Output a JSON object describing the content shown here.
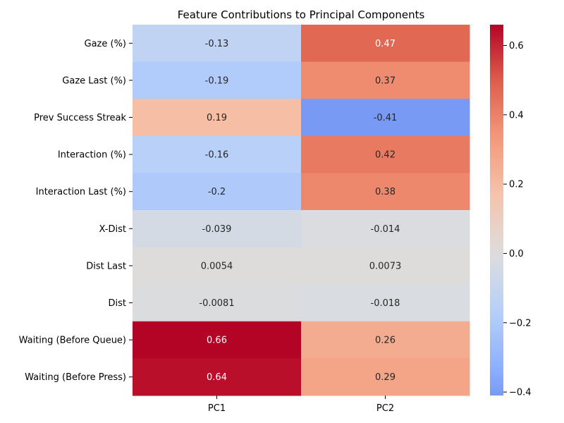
{
  "chart_data": {
    "type": "heatmap",
    "title": "Feature Contributions to Principal Components",
    "xlabel": "",
    "ylabel": "",
    "columns": [
      "PC1",
      "PC2"
    ],
    "rows": [
      "Gaze (%)",
      "Gaze Last (%)",
      "Prev Success Streak",
      "Interaction (%)",
      "Interaction Last (%)",
      "X-Dist",
      "Dist Last",
      "Dist",
      "Waiting (Before Queue)",
      "Waiting (Before Press)"
    ],
    "values": [
      [
        -0.13,
        0.47
      ],
      [
        -0.19,
        0.37
      ],
      [
        0.19,
        -0.41
      ],
      [
        -0.16,
        0.42
      ],
      [
        -0.2,
        0.38
      ],
      [
        -0.039,
        -0.014
      ],
      [
        0.0054,
        0.0073
      ],
      [
        -0.0081,
        -0.018
      ],
      [
        0.66,
        0.26
      ],
      [
        0.64,
        0.29
      ]
    ],
    "annotations": [
      [
        "-0.13",
        "0.47"
      ],
      [
        "-0.19",
        "0.37"
      ],
      [
        "0.19",
        "-0.41"
      ],
      [
        "-0.16",
        "0.42"
      ],
      [
        "-0.2",
        "0.38"
      ],
      [
        "-0.039",
        "-0.014"
      ],
      [
        "0.0054",
        "0.0073"
      ],
      [
        "-0.0081",
        "-0.018"
      ],
      [
        "0.66",
        "0.26"
      ],
      [
        "0.64",
        "0.29"
      ]
    ],
    "colormap": "coolwarm",
    "center": 0,
    "vmin": -0.41,
    "vmax": 0.66,
    "colorbar_ticks": [
      0.6,
      0.4,
      0.2,
      0.0,
      -0.2,
      -0.4
    ],
    "colorbar_tick_labels": [
      "0.6",
      "0.4",
      "0.2",
      "0.0",
      "−0.2",
      "−0.4"
    ],
    "grid": false,
    "legend": "colorbar-right"
  }
}
